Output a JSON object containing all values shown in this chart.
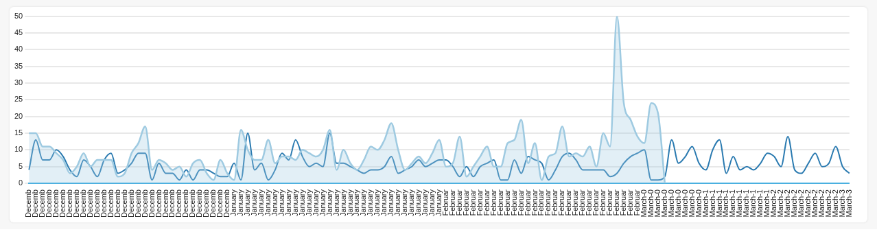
{
  "chart_data": {
    "type": "line",
    "categories": [
      "Decemb",
      "Decemb",
      "Decemb",
      "Decemb",
      "Decemb",
      "Decemb",
      "Decemb",
      "Decemb",
      "Decemb",
      "Decemb",
      "Decemb",
      "Decemb",
      "Decemb",
      "Decemb",
      "Decemb",
      "Decemb",
      "Decemb",
      "Decemb",
      "Decemb",
      "Decemb",
      "Decemb",
      "Decemb",
      "Decemb",
      "Decemb",
      "Decemb",
      "Decemb",
      "Decemb",
      "Decemb",
      "Decemb",
      "Decemb",
      "January",
      "January",
      "January",
      "January",
      "January",
      "January",
      "January",
      "January",
      "January",
      "January",
      "January",
      "January",
      "January",
      "January",
      "January",
      "January",
      "January",
      "January",
      "January",
      "January",
      "January",
      "January",
      "January",
      "January",
      "January",
      "January",
      "January",
      "January",
      "January",
      "January",
      "January",
      "Februar",
      "Februar",
      "Februar",
      "Februar",
      "Februar",
      "Februar",
      "Februar",
      "Februar",
      "Februar",
      "Februar",
      "Februar",
      "Februar",
      "Februar",
      "Februar",
      "Februar",
      "Februar",
      "Februar",
      "Februar",
      "Februar",
      "Februar",
      "Februar",
      "Februar",
      "Februar",
      "Februar",
      "Februar",
      "Februar",
      "Februar",
      "Februar",
      "Februar",
      "March-0",
      "March-0",
      "March-0",
      "March-0",
      "March-0",
      "March-0",
      "March-0",
      "March-0",
      "March-0",
      "March-1",
      "March-1",
      "March-1",
      "March-1",
      "March-1",
      "March-1",
      "March-1",
      "March-1",
      "March-1",
      "March-1",
      "March-2",
      "March-2",
      "March-2",
      "March-2",
      "March-2",
      "March-2",
      "March-2",
      "March-2",
      "March-2",
      "March-2",
      "March-3",
      "March-3"
    ],
    "series": [
      {
        "type": "area",
        "color": "#9ecae1",
        "values": [
          15,
          15,
          11,
          11,
          9,
          7,
          3,
          5,
          9,
          5,
          7,
          7,
          7,
          2,
          3,
          9,
          12,
          17,
          4,
          7,
          6,
          4,
          5,
          2,
          6,
          7,
          3,
          1,
          7,
          3,
          1,
          16,
          10,
          7,
          7,
          13,
          6,
          8,
          8,
          7,
          10,
          9,
          8,
          10,
          16,
          4,
          10,
          6,
          4,
          7,
          11,
          10,
          13,
          18,
          10,
          4,
          6,
          8,
          6,
          9,
          13,
          5,
          6,
          14,
          2,
          5,
          8,
          11,
          5,
          5,
          12,
          13,
          19,
          6,
          12,
          1,
          8,
          9,
          17,
          8,
          9,
          8,
          11,
          5,
          15,
          11,
          50,
          24,
          19,
          14,
          12,
          24,
          21,
          0,
          null,
          null,
          null,
          null,
          null,
          null,
          null,
          null,
          null,
          null,
          null,
          null,
          null,
          null,
          null,
          null,
          null,
          null,
          null,
          null,
          null,
          null,
          null,
          null,
          null,
          null,
          null
        ]
      },
      {
        "type": "line",
        "color": "#2a7ab0",
        "values": [
          4,
          13,
          7,
          7,
          10,
          8,
          4,
          2,
          7,
          5,
          2,
          7,
          9,
          3,
          4,
          6,
          9,
          9,
          1,
          6,
          3,
          3,
          1,
          4,
          1,
          4,
          4,
          3,
          2,
          2,
          6,
          1,
          15,
          4,
          6,
          1,
          4,
          9,
          7,
          13,
          8,
          5,
          6,
          5,
          15,
          6,
          6,
          5,
          4,
          3,
          4,
          4,
          5,
          8,
          3,
          4,
          5,
          7,
          5,
          6,
          7,
          7,
          5,
          2,
          5,
          2,
          5,
          6,
          7,
          1,
          1,
          7,
          3,
          8,
          7,
          6,
          1,
          4,
          8,
          9,
          7,
          4,
          4,
          4,
          4,
          2,
          3,
          6,
          8,
          9,
          10,
          1,
          1,
          2,
          13,
          6,
          8,
          11,
          6,
          4,
          10,
          13,
          3,
          8,
          4,
          5,
          4,
          6,
          9,
          8,
          5,
          14,
          4,
          3,
          6,
          9,
          5,
          6,
          11,
          5,
          3
        ]
      }
    ],
    "ylim": [
      0,
      50
    ],
    "yticks": [
      0,
      5,
      10,
      15,
      20,
      25,
      30,
      35,
      40,
      45,
      50
    ],
    "grid": "y"
  }
}
